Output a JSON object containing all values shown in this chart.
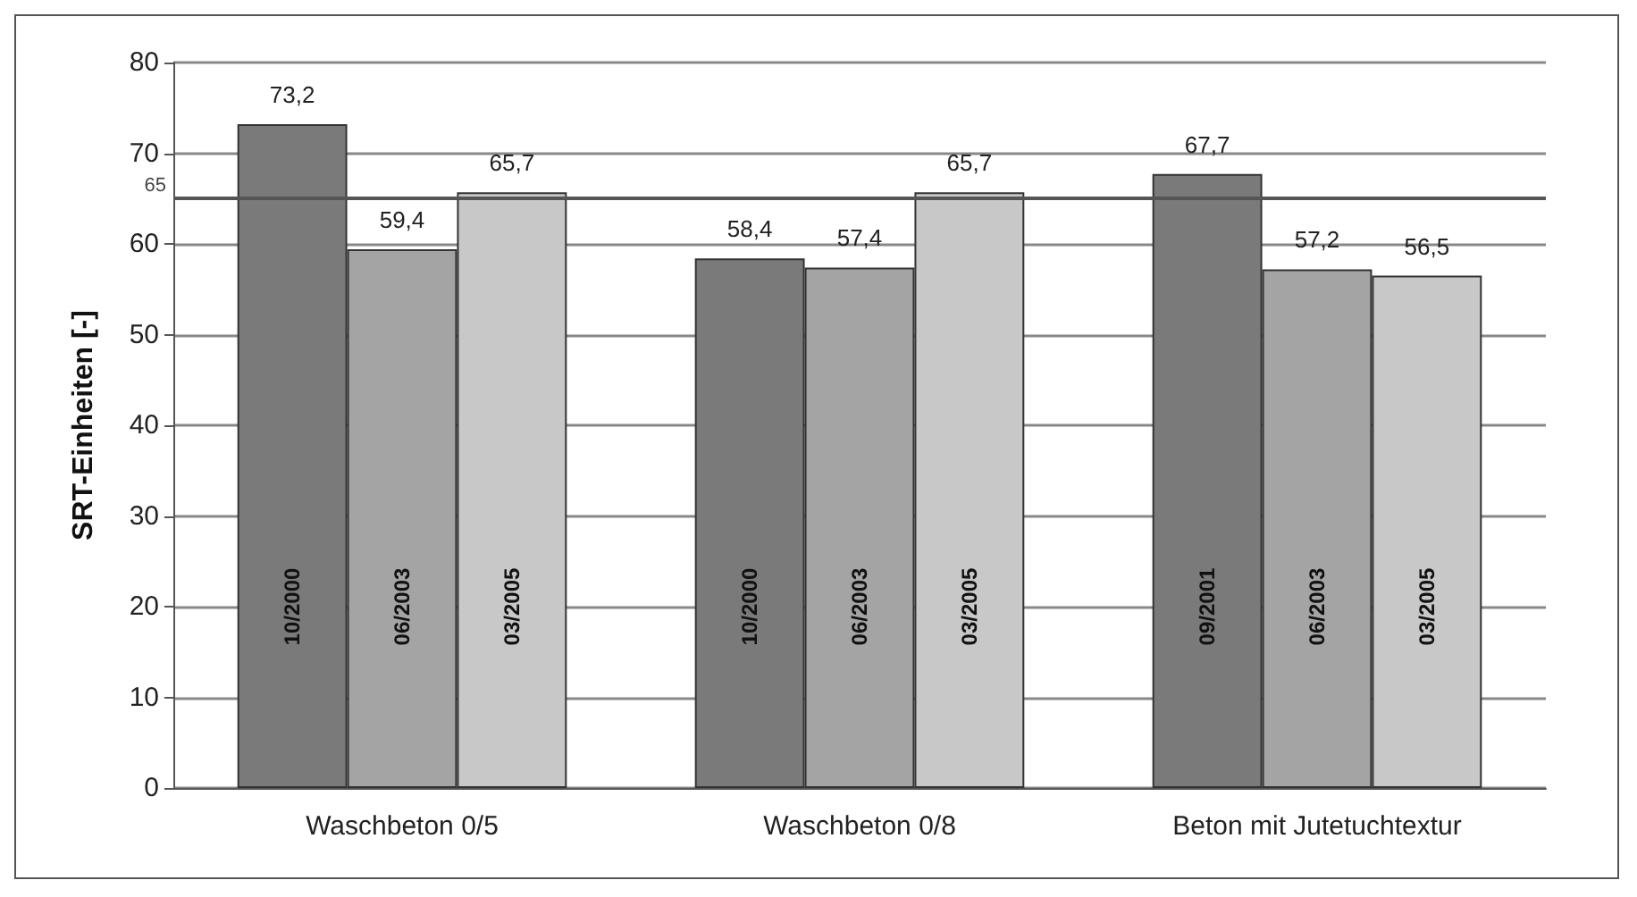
{
  "chart_data": {
    "type": "bar",
    "ylabel": "SRT-Einheiten [-]",
    "categories": [
      "Waschbeton 0/5",
      "Waschbeton 0/8",
      "Beton mit Jutetuchtextur"
    ],
    "series": [
      {
        "color": "#7a7a7a",
        "values": [
          73.2,
          58.4,
          67.7
        ],
        "value_labels": [
          "73,2",
          "58,4",
          "67,7"
        ]
      },
      {
        "color": "#a4a4a4",
        "values": [
          59.4,
          57.4,
          57.2
        ],
        "value_labels": [
          "59,4",
          "57,4",
          "57,2"
        ]
      },
      {
        "color": "#c8c8c8",
        "values": [
          65.7,
          65.7,
          56.5
        ],
        "value_labels": [
          "65,7",
          "65,7",
          "56,5"
        ]
      }
    ],
    "ylim": [
      0,
      80
    ],
    "yticks": [
      0,
      10,
      20,
      30,
      40,
      50,
      60,
      70,
      80
    ],
    "grid": "y",
    "ref_lines": [
      {
        "axis": "y",
        "value": 65,
        "label": "65",
        "color": "#555555"
      }
    ],
    "annotations": [
      "10/2000",
      "06/2003",
      "03/2005",
      "10/2000",
      "06/2003",
      "03/2005",
      "09/2001",
      "06/2003",
      "03/2005"
    ]
  }
}
